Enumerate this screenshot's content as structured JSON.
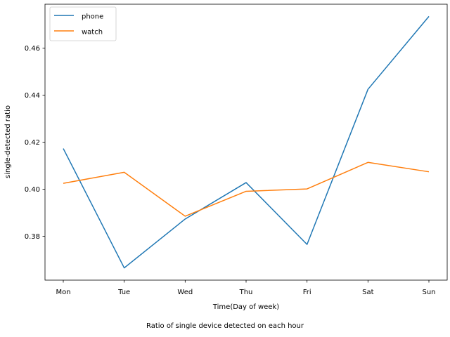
{
  "chart_data": {
    "type": "line",
    "categories": [
      "Mon",
      "Tue",
      "Wed",
      "Thu",
      "Fri",
      "Sat",
      "Sun"
    ],
    "series": [
      {
        "name": "phone",
        "color": "#1f77b4",
        "values": [
          0.4173,
          0.3665,
          0.3873,
          0.4028,
          0.3765,
          0.4425,
          0.4735
        ]
      },
      {
        "name": "watch",
        "color": "#ff7f0e",
        "values": [
          0.4025,
          0.4072,
          0.3885,
          0.3991,
          0.4001,
          0.4114,
          0.4074
        ]
      }
    ],
    "title": "",
    "xlabel": "Time(Day of week)",
    "ylabel": "single-detected ratio",
    "ylim": [
      0.3613,
      0.4787
    ],
    "yticks": [
      "0.38",
      "0.40",
      "0.42",
      "0.44",
      "0.46"
    ],
    "legend": "top-left",
    "grid": false
  },
  "caption": "Ratio of single device detected on each hour"
}
